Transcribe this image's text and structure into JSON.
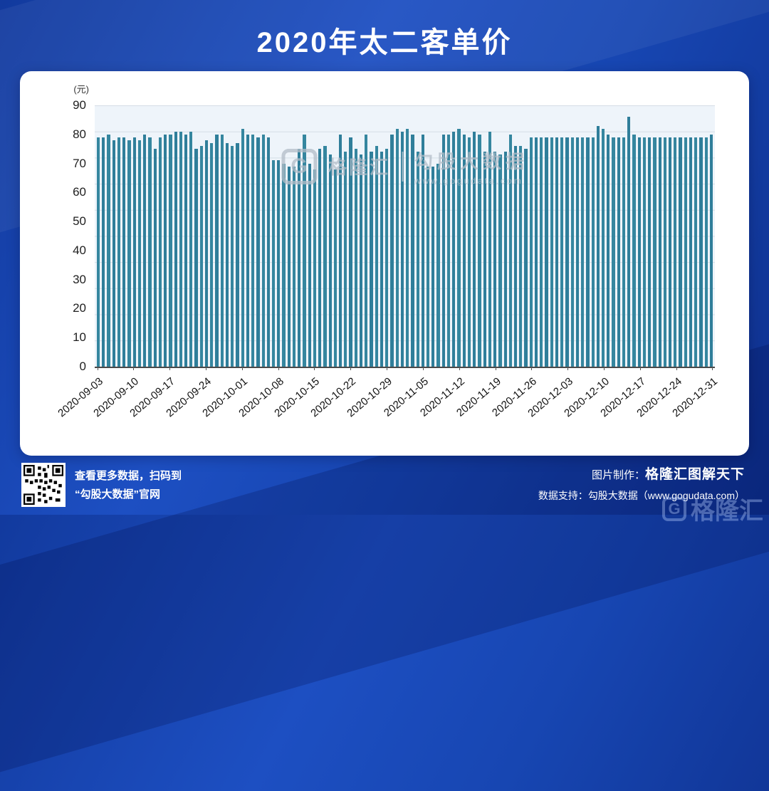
{
  "header": {
    "title": "2020年太二客单价"
  },
  "watermark": {
    "logo_letter": "G",
    "brand": "格隆汇",
    "name": "勾股大数据",
    "url": "www.gogudata.com"
  },
  "chart_data": {
    "type": "bar",
    "title": "2020年太二客单价",
    "ylabel": "(元)",
    "ylim": [
      0,
      90
    ],
    "yticks": [
      0,
      10,
      20,
      30,
      40,
      50,
      60,
      70,
      80,
      90
    ],
    "grid": true,
    "bar_color": "#2f7e9a",
    "x_start": "2020-09-03",
    "x_end": "2020-12-31",
    "x_tick_interval": 7,
    "x_tick_labels": [
      "2020-09-03",
      "2020-09-10",
      "2020-09-17",
      "2020-09-24",
      "2020-10-01",
      "2020-10-08",
      "2020-10-15",
      "2020-10-22",
      "2020-10-29",
      "2020-11-05",
      "2020-11-12",
      "2020-11-19",
      "2020-11-26",
      "2020-12-03",
      "2020-12-10",
      "2020-12-17",
      "2020-12-24",
      "2020-12-31"
    ],
    "values": [
      79,
      79,
      80,
      78,
      79,
      79,
      78,
      79,
      78,
      80,
      79,
      75,
      79,
      80,
      80,
      81,
      81,
      80,
      81,
      75,
      76,
      78,
      77,
      80,
      80,
      77,
      76,
      77,
      82,
      80,
      80,
      79,
      80,
      79,
      71,
      71,
      70,
      69,
      69,
      75,
      80,
      70,
      68,
      75,
      76,
      73,
      68,
      80,
      74,
      79,
      75,
      73,
      80,
      74,
      76,
      74,
      75,
      80,
      82,
      81,
      82,
      80,
      74,
      80,
      69,
      69,
      70,
      80,
      80,
      81,
      82,
      80,
      79,
      81,
      80,
      74,
      81,
      74,
      73,
      74,
      80,
      76,
      76,
      75,
      79,
      79,
      79,
      79,
      79,
      79,
      79,
      79,
      79,
      79,
      79,
      79,
      79,
      83,
      82,
      80,
      79,
      79,
      79,
      86,
      80,
      79,
      79,
      79,
      79,
      79,
      79,
      79,
      79,
      79,
      79,
      79,
      79,
      79,
      79,
      80
    ]
  },
  "footer": {
    "scan_line1": "查看更多数据，扫码到",
    "scan_line2": "“勾股大数据”官网",
    "credit_label": "图片制作：",
    "credit_brand": "格隆汇图解天下",
    "support_label": "数据支持：",
    "support_text": "勾股大数据（www.gogudata.com）",
    "corner_brand": "格隆汇",
    "corner_logo_letter": "G"
  }
}
